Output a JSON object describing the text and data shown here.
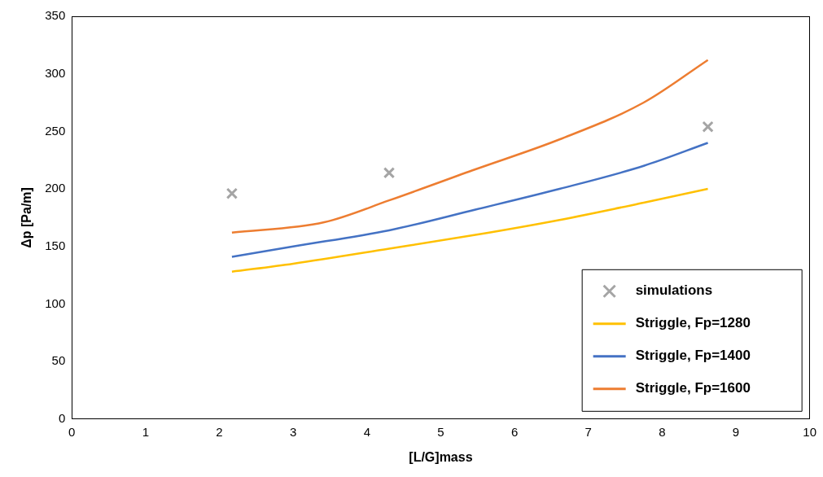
{
  "chart_data": {
    "type": "line",
    "xlabel": "[L/G]mass",
    "ylabel": "Δp [Pa/m]",
    "xlim": [
      0,
      10
    ],
    "xticks": [
      0,
      1,
      2,
      3,
      4,
      5,
      6,
      7,
      8,
      9,
      10
    ],
    "ylim": [
      0,
      350
    ],
    "yticks": [
      0,
      50,
      100,
      150,
      200,
      250,
      300,
      350
    ],
    "legend": "bottom right",
    "line_style": "solid",
    "series": [
      {
        "name": "simulations",
        "type": "scatter",
        "marker": "cross",
        "color": "#a5a5a5",
        "x": [
          2.17,
          4.3,
          8.62
        ],
        "values": [
          196,
          214,
          254
        ]
      },
      {
        "name": "Striggle, Fp=1280",
        "marker": "none",
        "color": "#ffc000",
        "x": [
          2.17,
          3.0,
          4.3,
          5.47,
          6.61,
          7.75,
          8.62
        ],
        "values": [
          128,
          135,
          148,
          160,
          173,
          188,
          200
        ]
      },
      {
        "name": "Striggle, Fp=1400",
        "marker": "none",
        "color": "#4472c4",
        "x": [
          2.17,
          3.0,
          4.3,
          5.47,
          6.61,
          7.75,
          8.62
        ],
        "values": [
          141,
          150,
          164,
          182,
          200,
          220,
          240
        ]
      },
      {
        "name": "Striggle, Fp=1600",
        "marker": "none",
        "color": "#ed7d31",
        "x": [
          2.17,
          3.42,
          4.3,
          5.47,
          6.61,
          7.75,
          8.62
        ],
        "values": [
          162,
          171,
          190,
          217,
          243,
          275,
          312
        ]
      }
    ]
  }
}
